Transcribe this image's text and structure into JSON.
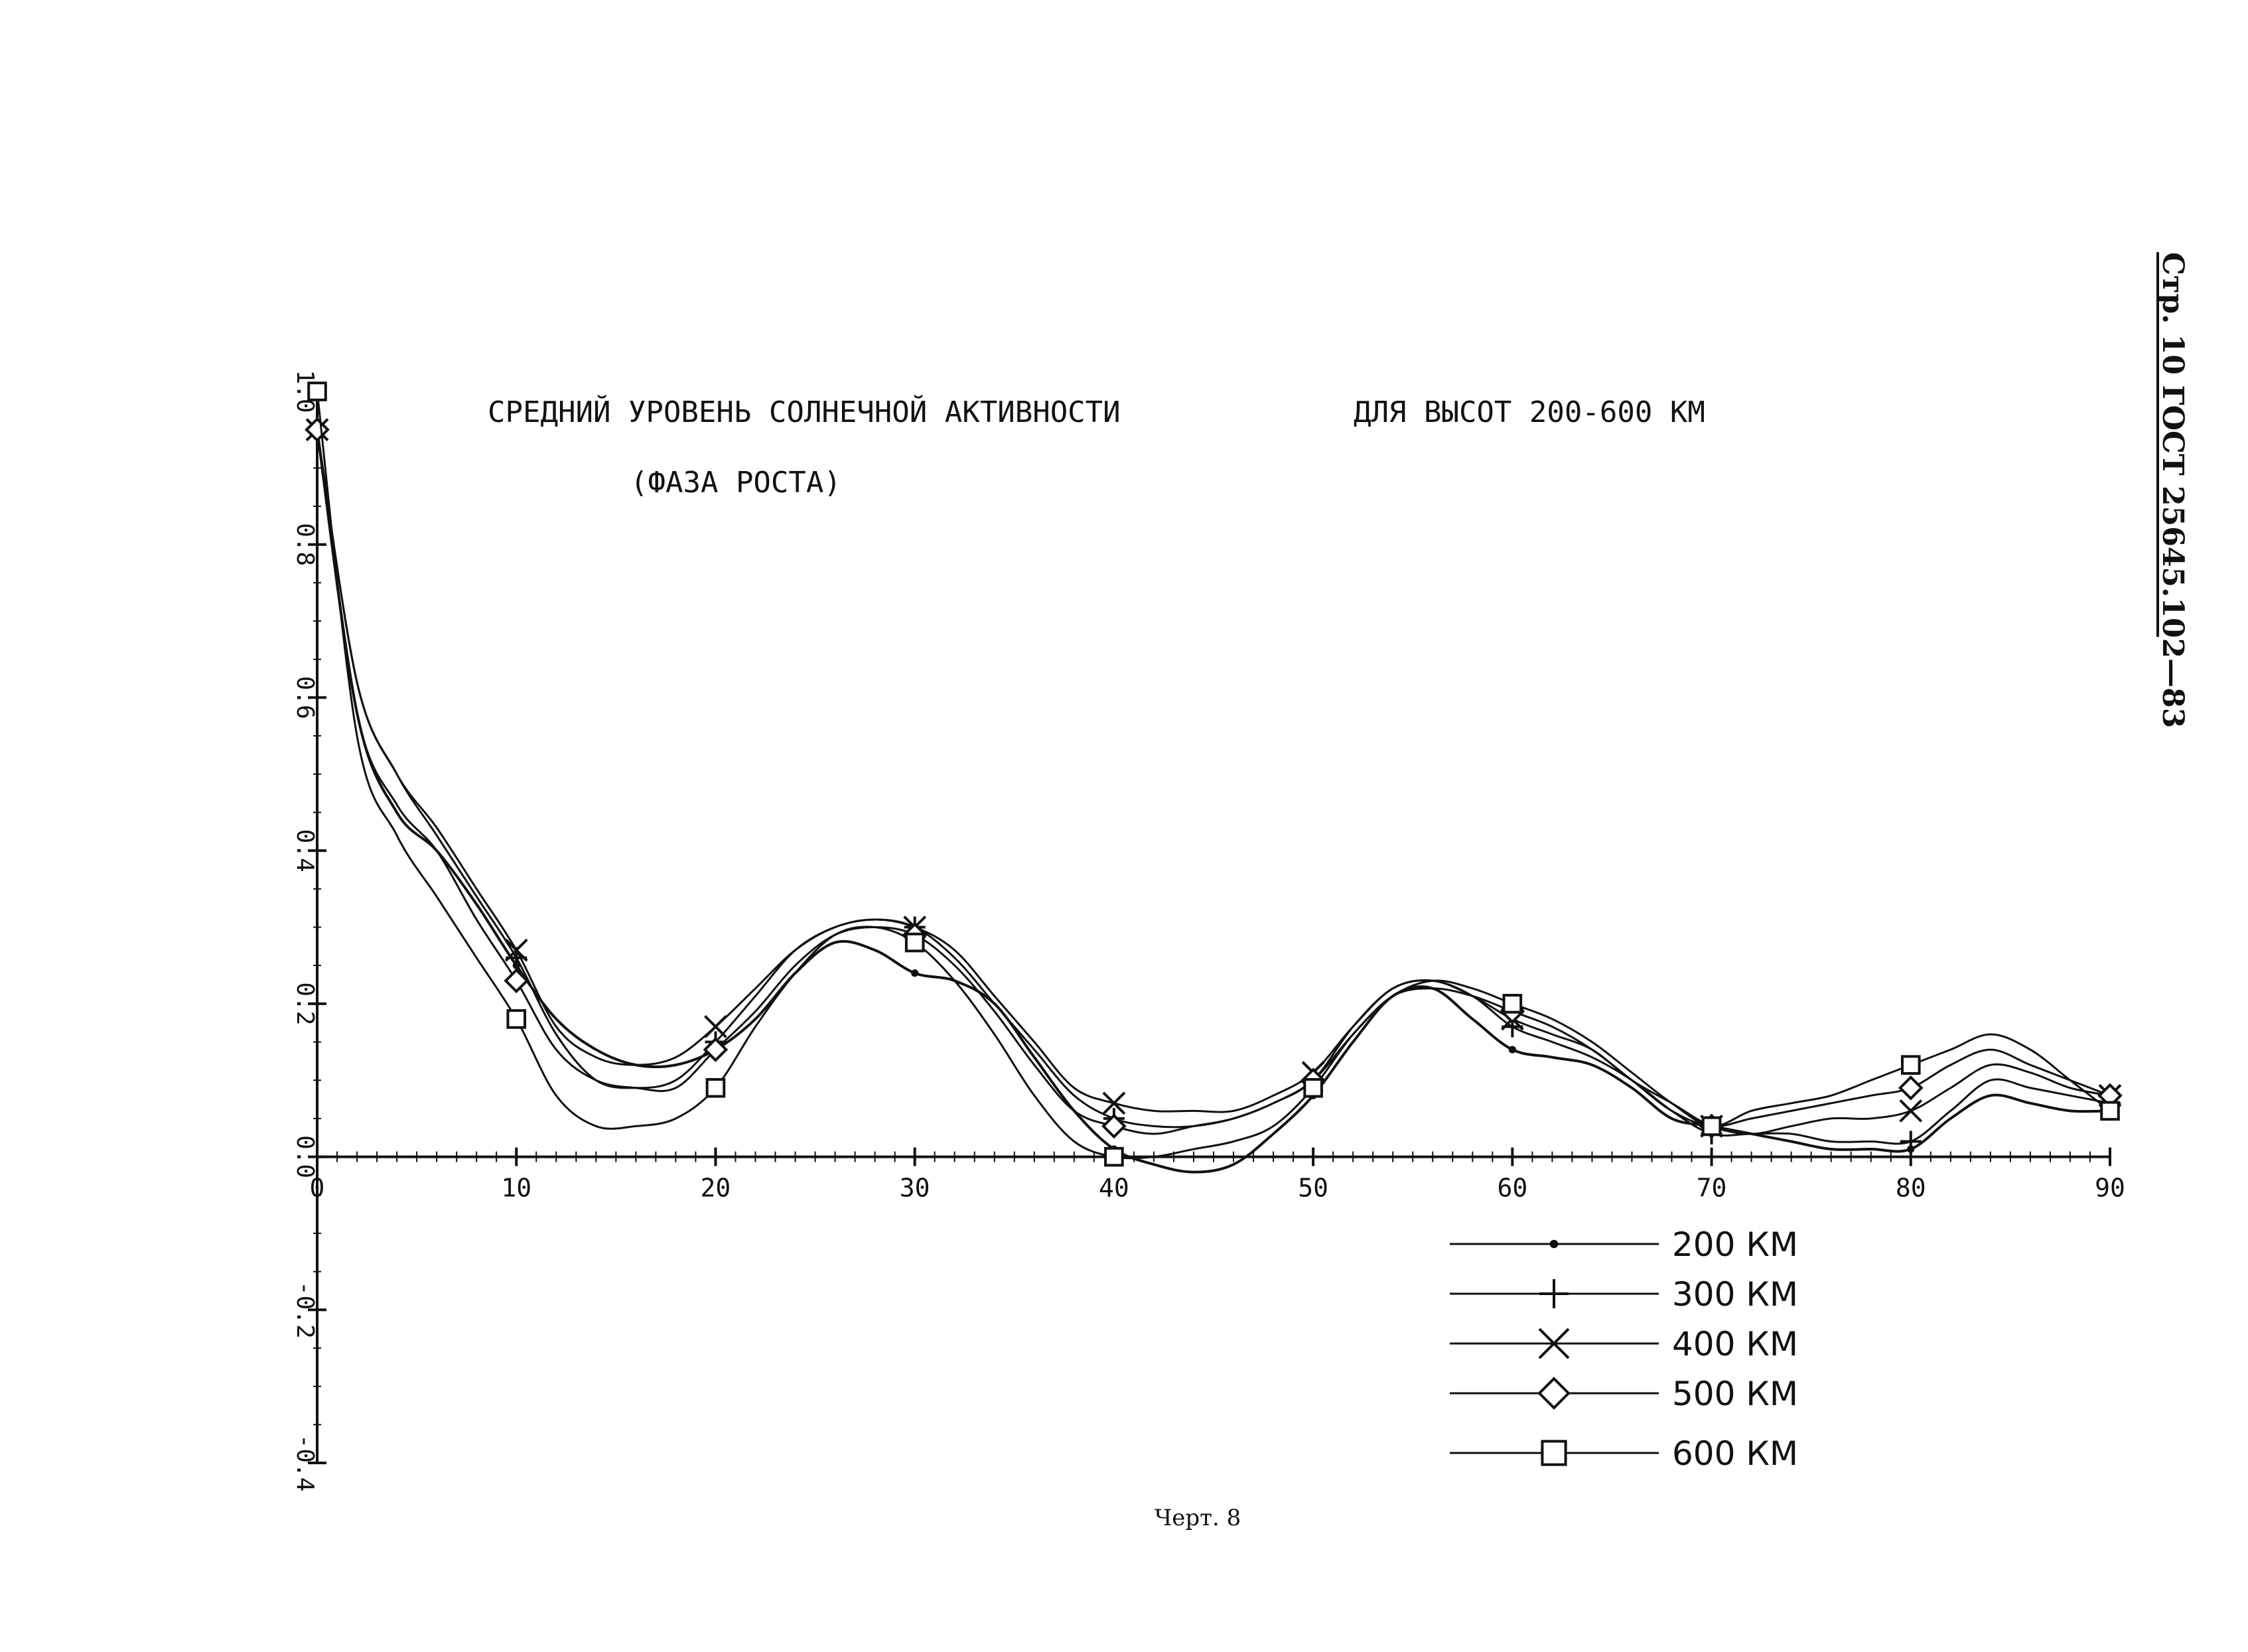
{
  "page_header": "Стр. 10 ГОСТ 25645.102—83",
  "caption": "Черт. 8",
  "chart_data": {
    "type": "line",
    "title": "СРЕДНИЙ УРОВЕНЬ СОЛНЕЧНОЙ АКТИВНОСТИ",
    "title_right": "ДЛЯ ВЫСОТ 200-600 КМ",
    "subtitle": "(ФАЗА РОСТА)",
    "xlabel": "",
    "ylabel": "",
    "xlim": [
      0,
      90
    ],
    "ylim": [
      -0.4,
      1.0
    ],
    "x_ticks": [
      0,
      10,
      20,
      30,
      40,
      50,
      60,
      70,
      80,
      90
    ],
    "x_tick_labels": [
      "0",
      "10",
      "20",
      "30",
      "40",
      "50",
      "60",
      "70",
      "80",
      "90"
    ],
    "y_ticks": [
      -0.4,
      -0.2,
      0.0,
      0.2,
      0.4,
      0.6,
      0.8,
      1.0
    ],
    "y_tick_labels": [
      "-0.4",
      "-0.2",
      "0.0",
      "0.2",
      "0.4",
      "0.6",
      "0.8",
      "1.0"
    ],
    "legend_position": "bottom-right",
    "grid": false,
    "line_color": "#111111",
    "series": [
      {
        "name": "200 КМ",
        "marker": "dot",
        "x": [
          0,
          2,
          4,
          6,
          8,
          10,
          12,
          14,
          16,
          18,
          20,
          22,
          24,
          26,
          28,
          30,
          32,
          34,
          36,
          38,
          40,
          42,
          44,
          46,
          48,
          50,
          52,
          54,
          56,
          58,
          60,
          62,
          64,
          66,
          68,
          70,
          72,
          74,
          76,
          78,
          80,
          82,
          84,
          86,
          88,
          90
        ],
        "y": [
          0.95,
          0.58,
          0.45,
          0.4,
          0.33,
          0.25,
          0.18,
          0.14,
          0.12,
          0.12,
          0.14,
          0.18,
          0.24,
          0.28,
          0.27,
          0.24,
          0.23,
          0.2,
          0.13,
          0.06,
          0.01,
          -0.01,
          -0.02,
          -0.01,
          0.03,
          0.08,
          0.15,
          0.21,
          0.22,
          0.18,
          0.14,
          0.13,
          0.12,
          0.09,
          0.05,
          0.04,
          0.03,
          0.02,
          0.01,
          0.01,
          0.01,
          0.05,
          0.08,
          0.07,
          0.06,
          0.06
        ]
      },
      {
        "name": "300 КМ",
        "marker": "plus",
        "x": [
          0,
          2,
          4,
          6,
          8,
          10,
          12,
          14,
          16,
          18,
          20,
          22,
          24,
          26,
          28,
          30,
          32,
          34,
          36,
          38,
          40,
          42,
          44,
          46,
          48,
          50,
          52,
          54,
          56,
          58,
          60,
          62,
          64,
          66,
          68,
          70,
          72,
          74,
          76,
          78,
          80,
          82,
          84,
          86,
          88,
          90
        ],
        "y": [
          0.95,
          0.62,
          0.5,
          0.42,
          0.34,
          0.26,
          0.16,
          0.1,
          0.09,
          0.1,
          0.15,
          0.21,
          0.27,
          0.3,
          0.31,
          0.3,
          0.26,
          0.2,
          0.14,
          0.08,
          0.05,
          0.04,
          0.04,
          0.05,
          0.07,
          0.1,
          0.17,
          0.22,
          0.23,
          0.21,
          0.17,
          0.15,
          0.13,
          0.1,
          0.06,
          0.03,
          0.03,
          0.03,
          0.02,
          0.02,
          0.02,
          0.06,
          0.1,
          0.09,
          0.08,
          0.07
        ]
      },
      {
        "name": "400 КМ",
        "marker": "cross",
        "x": [
          0,
          2,
          4,
          6,
          8,
          10,
          12,
          14,
          16,
          18,
          20,
          22,
          24,
          26,
          28,
          30,
          32,
          34,
          36,
          38,
          40,
          42,
          44,
          46,
          48,
          50,
          52,
          54,
          56,
          58,
          60,
          62,
          64,
          66,
          68,
          70,
          72,
          74,
          76,
          78,
          80,
          82,
          84,
          86,
          88,
          90
        ],
        "y": [
          0.95,
          0.62,
          0.5,
          0.43,
          0.35,
          0.27,
          0.17,
          0.13,
          0.12,
          0.13,
          0.17,
          0.22,
          0.27,
          0.3,
          0.31,
          0.3,
          0.27,
          0.21,
          0.15,
          0.09,
          0.07,
          0.06,
          0.06,
          0.06,
          0.08,
          0.11,
          0.17,
          0.22,
          0.23,
          0.21,
          0.18,
          0.16,
          0.14,
          0.1,
          0.07,
          0.04,
          0.03,
          0.04,
          0.05,
          0.05,
          0.06,
          0.09,
          0.12,
          0.11,
          0.09,
          0.08
        ]
      },
      {
        "name": "500 КМ",
        "marker": "diamond",
        "x": [
          0,
          2,
          4,
          6,
          8,
          10,
          12,
          14,
          16,
          18,
          20,
          22,
          24,
          26,
          28,
          30,
          32,
          34,
          36,
          38,
          40,
          42,
          44,
          46,
          48,
          50,
          52,
          54,
          56,
          58,
          60,
          62,
          64,
          66,
          68,
          70,
          72,
          74,
          76,
          78,
          80,
          82,
          84,
          86,
          88,
          90
        ],
        "y": [
          0.95,
          0.58,
          0.46,
          0.4,
          0.31,
          0.23,
          0.14,
          0.1,
          0.09,
          0.09,
          0.14,
          0.19,
          0.25,
          0.29,
          0.3,
          0.29,
          0.25,
          0.19,
          0.12,
          0.06,
          0.04,
          0.03,
          0.04,
          0.05,
          0.07,
          0.1,
          0.16,
          0.21,
          0.22,
          0.21,
          0.19,
          0.17,
          0.14,
          0.1,
          0.06,
          0.04,
          0.05,
          0.06,
          0.07,
          0.08,
          0.09,
          0.12,
          0.14,
          0.12,
          0.1,
          0.08
        ]
      },
      {
        "name": "600 КМ",
        "marker": "square",
        "x": [
          0,
          2,
          4,
          6,
          8,
          10,
          12,
          14,
          16,
          18,
          20,
          22,
          24,
          26,
          28,
          30,
          32,
          34,
          36,
          38,
          40,
          42,
          44,
          46,
          48,
          50,
          52,
          54,
          56,
          58,
          60,
          62,
          64,
          66,
          68,
          70,
          72,
          74,
          76,
          78,
          80,
          82,
          84,
          86,
          88,
          90
        ],
        "y": [
          1.0,
          0.55,
          0.42,
          0.34,
          0.26,
          0.18,
          0.08,
          0.04,
          0.04,
          0.05,
          0.09,
          0.17,
          0.24,
          0.29,
          0.3,
          0.28,
          0.23,
          0.16,
          0.08,
          0.02,
          0.0,
          0.0,
          0.01,
          0.02,
          0.04,
          0.09,
          0.16,
          0.21,
          0.23,
          0.22,
          0.2,
          0.18,
          0.15,
          0.11,
          0.07,
          0.04,
          0.06,
          0.07,
          0.08,
          0.1,
          0.12,
          0.14,
          0.16,
          0.14,
          0.1,
          0.06
        ]
      }
    ]
  }
}
